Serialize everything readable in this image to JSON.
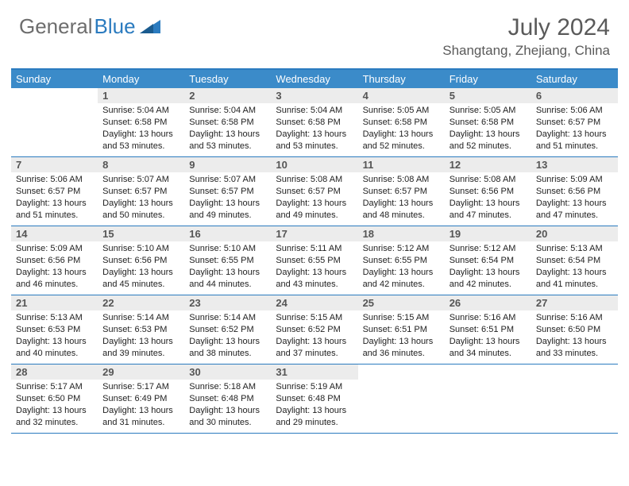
{
  "logo": {
    "gray": "General",
    "blue": "Blue"
  },
  "title": "July 2024",
  "location": "Shangtang, Zhejiang, China",
  "colors": {
    "header_bar": "#3b8bc9",
    "border": "#2b7bbf",
    "daynum_bg": "#ececec",
    "logo_gray": "#6d6d6d",
    "logo_blue": "#2b7bbf",
    "text": "#222222"
  },
  "weekdays": [
    "Sunday",
    "Monday",
    "Tuesday",
    "Wednesday",
    "Thursday",
    "Friday",
    "Saturday"
  ],
  "weeks": [
    [
      {
        "n": "",
        "sr": "",
        "ss": "",
        "dl": ""
      },
      {
        "n": "1",
        "sr": "Sunrise: 5:04 AM",
        "ss": "Sunset: 6:58 PM",
        "dl": "Daylight: 13 hours and 53 minutes."
      },
      {
        "n": "2",
        "sr": "Sunrise: 5:04 AM",
        "ss": "Sunset: 6:58 PM",
        "dl": "Daylight: 13 hours and 53 minutes."
      },
      {
        "n": "3",
        "sr": "Sunrise: 5:04 AM",
        "ss": "Sunset: 6:58 PM",
        "dl": "Daylight: 13 hours and 53 minutes."
      },
      {
        "n": "4",
        "sr": "Sunrise: 5:05 AM",
        "ss": "Sunset: 6:58 PM",
        "dl": "Daylight: 13 hours and 52 minutes."
      },
      {
        "n": "5",
        "sr": "Sunrise: 5:05 AM",
        "ss": "Sunset: 6:58 PM",
        "dl": "Daylight: 13 hours and 52 minutes."
      },
      {
        "n": "6",
        "sr": "Sunrise: 5:06 AM",
        "ss": "Sunset: 6:57 PM",
        "dl": "Daylight: 13 hours and 51 minutes."
      }
    ],
    [
      {
        "n": "7",
        "sr": "Sunrise: 5:06 AM",
        "ss": "Sunset: 6:57 PM",
        "dl": "Daylight: 13 hours and 51 minutes."
      },
      {
        "n": "8",
        "sr": "Sunrise: 5:07 AM",
        "ss": "Sunset: 6:57 PM",
        "dl": "Daylight: 13 hours and 50 minutes."
      },
      {
        "n": "9",
        "sr": "Sunrise: 5:07 AM",
        "ss": "Sunset: 6:57 PM",
        "dl": "Daylight: 13 hours and 49 minutes."
      },
      {
        "n": "10",
        "sr": "Sunrise: 5:08 AM",
        "ss": "Sunset: 6:57 PM",
        "dl": "Daylight: 13 hours and 49 minutes."
      },
      {
        "n": "11",
        "sr": "Sunrise: 5:08 AM",
        "ss": "Sunset: 6:57 PM",
        "dl": "Daylight: 13 hours and 48 minutes."
      },
      {
        "n": "12",
        "sr": "Sunrise: 5:08 AM",
        "ss": "Sunset: 6:56 PM",
        "dl": "Daylight: 13 hours and 47 minutes."
      },
      {
        "n": "13",
        "sr": "Sunrise: 5:09 AM",
        "ss": "Sunset: 6:56 PM",
        "dl": "Daylight: 13 hours and 47 minutes."
      }
    ],
    [
      {
        "n": "14",
        "sr": "Sunrise: 5:09 AM",
        "ss": "Sunset: 6:56 PM",
        "dl": "Daylight: 13 hours and 46 minutes."
      },
      {
        "n": "15",
        "sr": "Sunrise: 5:10 AM",
        "ss": "Sunset: 6:56 PM",
        "dl": "Daylight: 13 hours and 45 minutes."
      },
      {
        "n": "16",
        "sr": "Sunrise: 5:10 AM",
        "ss": "Sunset: 6:55 PM",
        "dl": "Daylight: 13 hours and 44 minutes."
      },
      {
        "n": "17",
        "sr": "Sunrise: 5:11 AM",
        "ss": "Sunset: 6:55 PM",
        "dl": "Daylight: 13 hours and 43 minutes."
      },
      {
        "n": "18",
        "sr": "Sunrise: 5:12 AM",
        "ss": "Sunset: 6:55 PM",
        "dl": "Daylight: 13 hours and 42 minutes."
      },
      {
        "n": "19",
        "sr": "Sunrise: 5:12 AM",
        "ss": "Sunset: 6:54 PM",
        "dl": "Daylight: 13 hours and 42 minutes."
      },
      {
        "n": "20",
        "sr": "Sunrise: 5:13 AM",
        "ss": "Sunset: 6:54 PM",
        "dl": "Daylight: 13 hours and 41 minutes."
      }
    ],
    [
      {
        "n": "21",
        "sr": "Sunrise: 5:13 AM",
        "ss": "Sunset: 6:53 PM",
        "dl": "Daylight: 13 hours and 40 minutes."
      },
      {
        "n": "22",
        "sr": "Sunrise: 5:14 AM",
        "ss": "Sunset: 6:53 PM",
        "dl": "Daylight: 13 hours and 39 minutes."
      },
      {
        "n": "23",
        "sr": "Sunrise: 5:14 AM",
        "ss": "Sunset: 6:52 PM",
        "dl": "Daylight: 13 hours and 38 minutes."
      },
      {
        "n": "24",
        "sr": "Sunrise: 5:15 AM",
        "ss": "Sunset: 6:52 PM",
        "dl": "Daylight: 13 hours and 37 minutes."
      },
      {
        "n": "25",
        "sr": "Sunrise: 5:15 AM",
        "ss": "Sunset: 6:51 PM",
        "dl": "Daylight: 13 hours and 36 minutes."
      },
      {
        "n": "26",
        "sr": "Sunrise: 5:16 AM",
        "ss": "Sunset: 6:51 PM",
        "dl": "Daylight: 13 hours and 34 minutes."
      },
      {
        "n": "27",
        "sr": "Sunrise: 5:16 AM",
        "ss": "Sunset: 6:50 PM",
        "dl": "Daylight: 13 hours and 33 minutes."
      }
    ],
    [
      {
        "n": "28",
        "sr": "Sunrise: 5:17 AM",
        "ss": "Sunset: 6:50 PM",
        "dl": "Daylight: 13 hours and 32 minutes."
      },
      {
        "n": "29",
        "sr": "Sunrise: 5:17 AM",
        "ss": "Sunset: 6:49 PM",
        "dl": "Daylight: 13 hours and 31 minutes."
      },
      {
        "n": "30",
        "sr": "Sunrise: 5:18 AM",
        "ss": "Sunset: 6:48 PM",
        "dl": "Daylight: 13 hours and 30 minutes."
      },
      {
        "n": "31",
        "sr": "Sunrise: 5:19 AM",
        "ss": "Sunset: 6:48 PM",
        "dl": "Daylight: 13 hours and 29 minutes."
      },
      {
        "n": "",
        "sr": "",
        "ss": "",
        "dl": ""
      },
      {
        "n": "",
        "sr": "",
        "ss": "",
        "dl": ""
      },
      {
        "n": "",
        "sr": "",
        "ss": "",
        "dl": ""
      }
    ]
  ]
}
